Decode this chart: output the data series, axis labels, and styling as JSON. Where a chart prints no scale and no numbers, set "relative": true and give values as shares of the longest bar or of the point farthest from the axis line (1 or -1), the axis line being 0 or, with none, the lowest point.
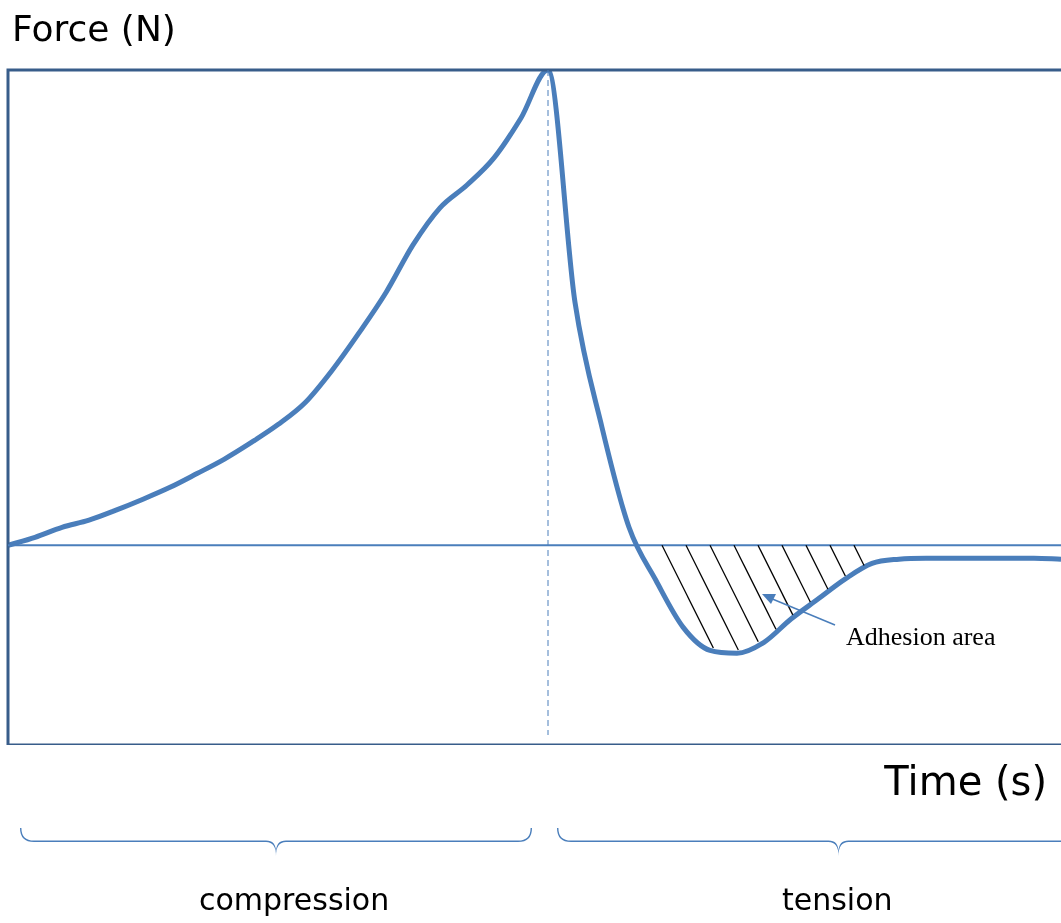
{
  "chart_data": {
    "type": "line",
    "relative": true,
    "ylabel": "Force (N)",
    "xlabel": "Time (s)",
    "categories": [
      null,
      null,
      null,
      null,
      null,
      null,
      null,
      null,
      null,
      null,
      null,
      null,
      null,
      null,
      null,
      null,
      null,
      null,
      null,
      null,
      null,
      null,
      null,
      null,
      null,
      null,
      null,
      null,
      null,
      null,
      null,
      null,
      null,
      null,
      null,
      null,
      null,
      null,
      null,
      null
    ],
    "series": [
      {
        "color": "#4a7ebb",
        "values": [
          0,
          0.017,
          0.038,
          0.053,
          0.074,
          0.097,
          0.122,
          0.151,
          0.181,
          0.216,
          0.254,
          0.3,
          0.368,
          0.447,
          0.532,
          0.632,
          0.71,
          0.758,
          0.815,
          0.899,
          1,
          0.511,
          0.248,
          0.038,
          -0.074,
          -0.172,
          -0.221,
          -0.227,
          -0.204,
          -0.155,
          -0.113,
          -0.071,
          -0.038,
          -0.029,
          -0.027,
          -0.027,
          -0.027,
          -0.027,
          -0.027,
          -0.029
        ]
      }
    ],
    "ref_lines": [
      {
        "axis": "y",
        "value": 0,
        "color": "#4a7ebb",
        "line_style": "solid"
      }
    ],
    "annotations": [
      "Adhesion area",
      "compression",
      "tension"
    ],
    "legend": false,
    "marker": "none",
    "line_style": "solid"
  }
}
